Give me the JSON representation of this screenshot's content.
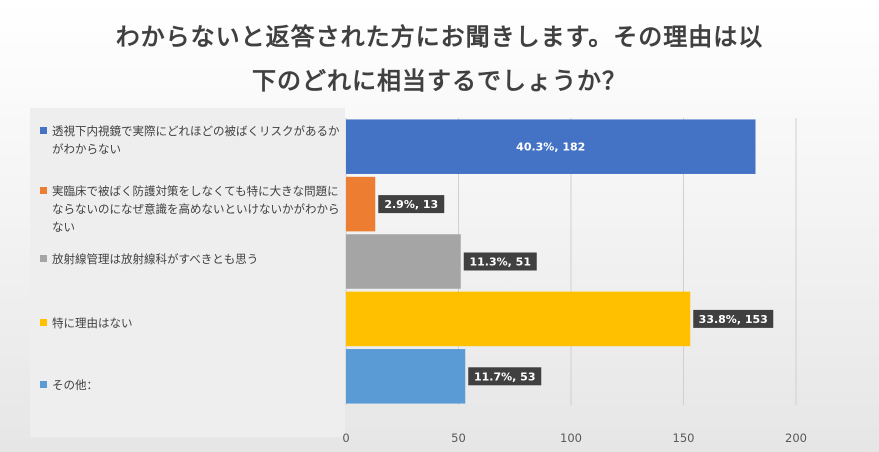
{
  "chart_data": {
    "type": "bar",
    "orientation": "horizontal",
    "title_lines": [
      "わからないと返答された方にお聞きします。その理由は以",
      "下のどれに相当するでしょうか？"
    ],
    "xlabel": "",
    "ylabel": "",
    "xlim": [
      0,
      200
    ],
    "x_ticks": [
      0,
      50,
      100,
      150,
      200
    ],
    "grid": true,
    "legend_position": "left",
    "categories": [
      "透視下内視鏡で実際にどれほどの被ばくリスクがあるかがわからない",
      "実臨床で被ばく防護対策をしなくても特に大きな問題にならないのになぜ意識を高めないといけないかがわからない",
      "放射線管理は放射線科がすべきとも思う",
      "特に理由はない",
      "その他："
    ],
    "values": [
      182,
      13,
      51,
      153,
      53
    ],
    "data_labels": [
      "40.3%, 182",
      "2.9%, 13",
      "11.3%, 51",
      "33.8%, 153",
      "11.7%, 53"
    ],
    "colors": [
      "#4472C4",
      "#ED7D31",
      "#A5A5A5",
      "#FFC000",
      "#5B9BD5"
    ]
  }
}
